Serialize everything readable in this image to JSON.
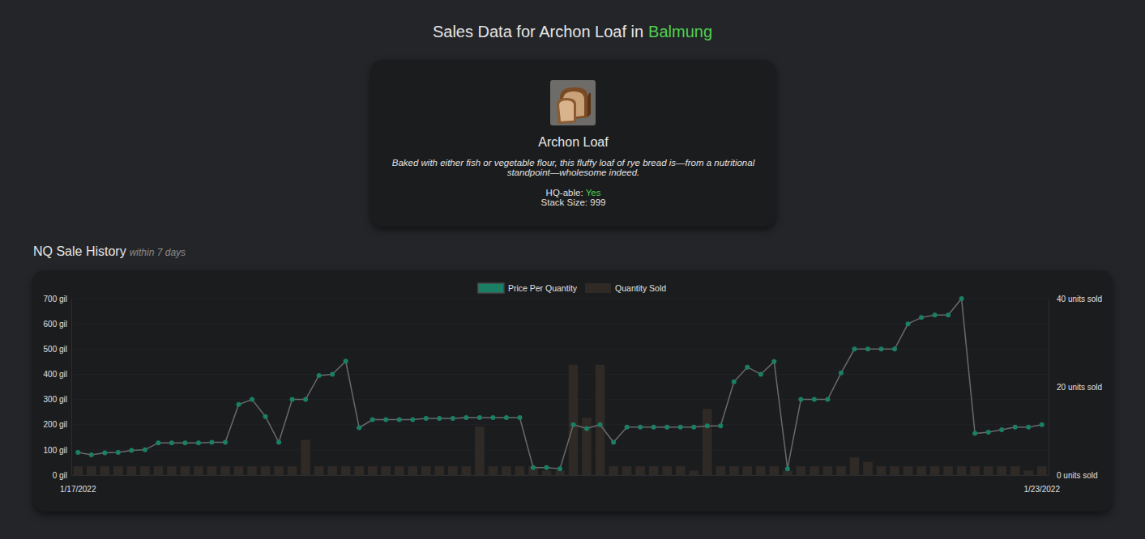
{
  "header": {
    "title": "Sales Data for Archon Loaf in",
    "world": "Balmung"
  },
  "item": {
    "name": "Archon Loaf",
    "description": "Baked with either fish or vegetable flour, this fluffy loaf of rye bread is—from a nutritional standpoint—wholesome indeed.",
    "fields": [
      {
        "label": "HQ-able:",
        "value": "Yes"
      },
      {
        "label": "Stack Size:",
        "value": "999"
      }
    ]
  },
  "chart_data": {
    "type": "line",
    "title": "NQ Sale History",
    "subtitle": "within 7 days",
    "categories": [
      "1/17/2022",
      null,
      null,
      null,
      null,
      null,
      null,
      null,
      null,
      null,
      null,
      null,
      null,
      null,
      null,
      null,
      null,
      null,
      null,
      null,
      null,
      null,
      null,
      null,
      null,
      null,
      null,
      null,
      null,
      null,
      null,
      null,
      null,
      null,
      null,
      null,
      null,
      null,
      null,
      null,
      null,
      null,
      null,
      null,
      null,
      null,
      null,
      null,
      null,
      null,
      null,
      null,
      null,
      null,
      null,
      null,
      null,
      null,
      null,
      null,
      null,
      null,
      null,
      null,
      null,
      null,
      null,
      null,
      null,
      null,
      null,
      null,
      "1/23/2022"
    ],
    "series": [
      {
        "name": "Price Per Quantity",
        "type": "line",
        "color": "#1a7f64",
        "marker": "circle",
        "line_style": "solid",
        "values": [
          90,
          80,
          88,
          90,
          98,
          100,
          128,
          128,
          128,
          128,
          130,
          130,
          280,
          300,
          232,
          130,
          300,
          300,
          395,
          400,
          452,
          188,
          220,
          220,
          220,
          220,
          225,
          225,
          225,
          228,
          228,
          228,
          228,
          228,
          30,
          30,
          25,
          200,
          185,
          200,
          130,
          190,
          190,
          190,
          190,
          190,
          190,
          195,
          195,
          370,
          428,
          400,
          450,
          25,
          300,
          300,
          300,
          405,
          500,
          500,
          500,
          500,
          600,
          625,
          635,
          635,
          700,
          165,
          170,
          180,
          190,
          190,
          200
        ]
      },
      {
        "name": "Quantity Sold",
        "type": "bar",
        "color": "#2f2a26",
        "axis": "y2",
        "values": [
          2,
          2,
          2,
          2,
          2,
          2,
          2,
          2,
          2,
          2,
          2,
          2,
          2,
          2,
          2,
          2,
          2,
          8,
          2,
          2,
          2,
          2,
          2,
          2,
          2,
          2,
          2,
          2,
          2,
          2,
          11,
          2,
          2,
          2,
          2,
          1,
          1,
          25,
          13,
          25,
          2,
          2,
          2,
          2,
          2,
          2,
          1,
          15,
          2,
          2,
          2,
          2,
          2,
          1,
          2,
          2,
          2,
          2,
          4,
          3,
          2,
          2,
          2,
          2,
          2,
          2,
          2,
          2,
          2,
          2,
          2,
          1,
          2
        ]
      }
    ],
    "ylim": [
      0,
      700
    ],
    "yticks": [
      {
        "value": 0,
        "label": "0 gil"
      },
      {
        "value": 100,
        "label": "100 gil"
      },
      {
        "value": 200,
        "label": "200 gil"
      },
      {
        "value": 300,
        "label": "300 gil"
      },
      {
        "value": 400,
        "label": "400 gil"
      },
      {
        "value": 500,
        "label": "500 gil"
      },
      {
        "value": 600,
        "label": "600 gil"
      },
      {
        "value": 700,
        "label": "700 gil"
      }
    ],
    "y2lim": [
      0,
      40
    ],
    "y2ticks": [
      {
        "value": 0,
        "label": "0 units sold"
      },
      {
        "value": 20,
        "label": "20 units sold"
      },
      {
        "value": 40,
        "label": "40 units sold"
      }
    ],
    "grid": true,
    "legend": "top"
  }
}
